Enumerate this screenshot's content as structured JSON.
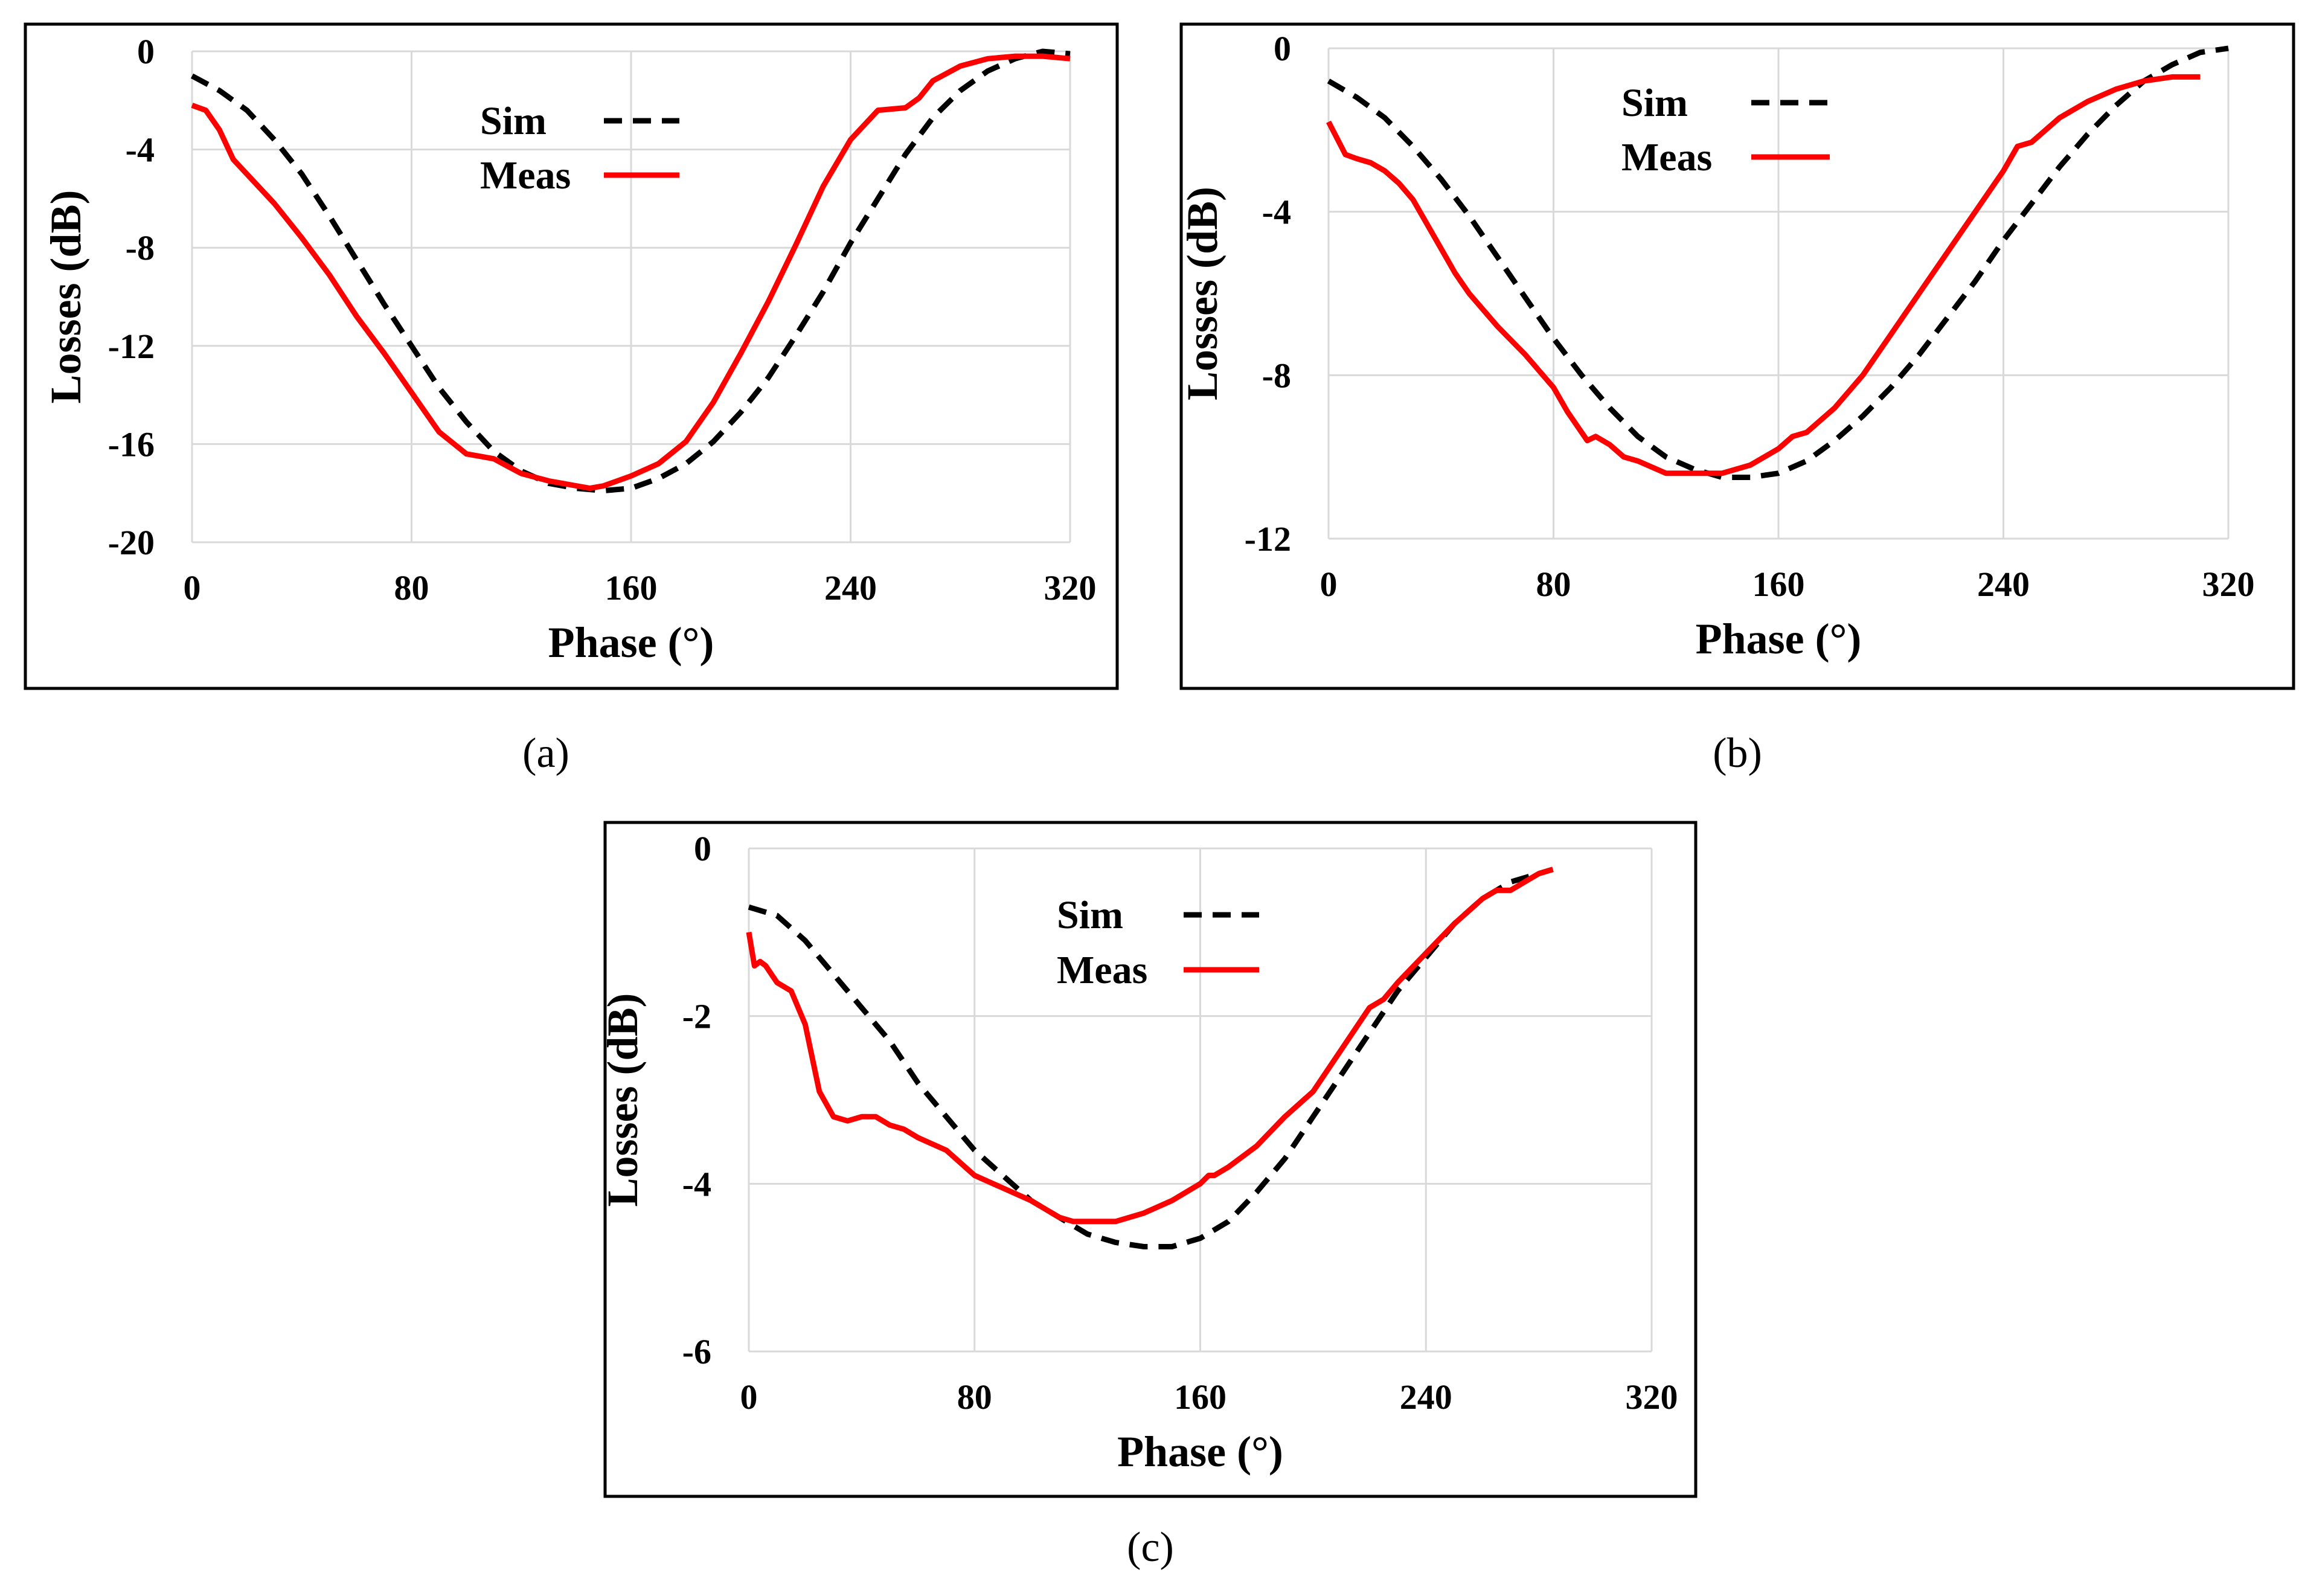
{
  "chart_data": [
    {
      "type": "line",
      "panel": "a",
      "caption": "(a)",
      "xlabel": "Phase (°)",
      "ylabel": "Losses  (dB)",
      "xlim": [
        0,
        320
      ],
      "ylim": [
        -20,
        0
      ],
      "xticks": [
        0,
        80,
        160,
        240,
        320
      ],
      "yticks": [
        0,
        -4,
        -8,
        -12,
        -16,
        -20
      ],
      "grid": true,
      "legend": "top-center",
      "series": [
        {
          "name": "Sim",
          "style": "dashed",
          "color": "#000000",
          "x": [
            0,
            10,
            20,
            30,
            40,
            50,
            60,
            70,
            80,
            90,
            100,
            110,
            120,
            130,
            140,
            150,
            160,
            170,
            180,
            190,
            200,
            210,
            220,
            230,
            240,
            250,
            260,
            270,
            280,
            290,
            300,
            310,
            320
          ],
          "y": [
            -1,
            -1.6,
            -2.4,
            -3.6,
            -5,
            -6.7,
            -8.5,
            -10.3,
            -12,
            -13.7,
            -15.1,
            -16.3,
            -17.1,
            -17.6,
            -17.8,
            -17.9,
            -17.8,
            -17.4,
            -16.8,
            -15.9,
            -14.7,
            -13.3,
            -11.6,
            -9.8,
            -7.8,
            -6,
            -4.2,
            -2.7,
            -1.6,
            -0.8,
            -0.3,
            0,
            -0.1
          ]
        },
        {
          "name": "Meas",
          "style": "solid",
          "color": "#ff0000",
          "x": [
            0,
            5,
            10,
            15,
            20,
            30,
            40,
            50,
            60,
            70,
            80,
            90,
            100,
            105,
            110,
            115,
            120,
            130,
            140,
            145,
            150,
            160,
            170,
            180,
            190,
            200,
            210,
            220,
            230,
            240,
            250,
            260,
            265,
            270,
            280,
            290,
            300,
            310,
            320
          ],
          "y": [
            -2.2,
            -2.4,
            -3.2,
            -4.4,
            -5,
            -6.2,
            -7.6,
            -9.1,
            -10.8,
            -12.3,
            -13.9,
            -15.5,
            -16.4,
            -16.5,
            -16.6,
            -16.9,
            -17.2,
            -17.5,
            -17.7,
            -17.8,
            -17.7,
            -17.3,
            -16.8,
            -15.9,
            -14.3,
            -12.3,
            -10.2,
            -7.9,
            -5.5,
            -3.6,
            -2.4,
            -2.3,
            -1.9,
            -1.2,
            -0.6,
            -0.3,
            -0.2,
            -0.2,
            -0.3
          ]
        }
      ]
    },
    {
      "type": "line",
      "panel": "b",
      "caption": "(b)",
      "xlabel": "Phase (°)",
      "ylabel": "Losses  (dB)",
      "xlim": [
        0,
        320
      ],
      "ylim": [
        -12,
        0
      ],
      "xticks": [
        0,
        80,
        160,
        240,
        320
      ],
      "yticks": [
        0,
        -4,
        -8,
        -12
      ],
      "grid": true,
      "legend": "top-center",
      "series": [
        {
          "name": "Sim",
          "style": "dashed",
          "color": "#000000",
          "x": [
            0,
            10,
            20,
            30,
            40,
            50,
            60,
            70,
            80,
            90,
            100,
            110,
            120,
            130,
            140,
            150,
            160,
            170,
            180,
            190,
            200,
            210,
            220,
            230,
            240,
            250,
            260,
            270,
            280,
            290,
            300,
            310,
            320
          ],
          "y": [
            -0.8,
            -1.2,
            -1.7,
            -2.4,
            -3.2,
            -4.1,
            -5.1,
            -6.1,
            -7.1,
            -8,
            -8.8,
            -9.5,
            -10,
            -10.3,
            -10.5,
            -10.5,
            -10.4,
            -10.1,
            -9.6,
            -9,
            -8.3,
            -7.5,
            -6.6,
            -5.7,
            -4.7,
            -3.8,
            -2.9,
            -2.1,
            -1.4,
            -0.8,
            -0.4,
            -0.1,
            0
          ]
        },
        {
          "name": "Meas",
          "style": "solid",
          "color": "#ff0000",
          "x": [
            0,
            3,
            6,
            10,
            15,
            20,
            25,
            30,
            35,
            40,
            45,
            50,
            60,
            70,
            80,
            85,
            90,
            92,
            95,
            100,
            105,
            110,
            120,
            130,
            140,
            150,
            155,
            160,
            165,
            170,
            180,
            190,
            200,
            210,
            220,
            230,
            240,
            245,
            250,
            260,
            270,
            280,
            290,
            300,
            310
          ],
          "y": [
            -1.8,
            -2.2,
            -2.6,
            -2.7,
            -2.8,
            -3,
            -3.3,
            -3.7,
            -4.3,
            -4.9,
            -5.5,
            -6,
            -6.8,
            -7.5,
            -8.3,
            -8.9,
            -9.4,
            -9.6,
            -9.5,
            -9.7,
            -10,
            -10.1,
            -10.4,
            -10.4,
            -10.4,
            -10.2,
            -10,
            -9.8,
            -9.5,
            -9.4,
            -8.8,
            -8,
            -7,
            -6,
            -5,
            -4,
            -3,
            -2.4,
            -2.3,
            -1.7,
            -1.3,
            -1,
            -0.8,
            -0.7,
            -0.7
          ]
        }
      ]
    },
    {
      "type": "line",
      "panel": "c",
      "caption": "(c)",
      "xlabel": "Phase (°)",
      "ylabel": "Losses  (dB)",
      "xlim": [
        0,
        320
      ],
      "ylim": [
        -6,
        0
      ],
      "xticks": [
        0,
        80,
        160,
        240,
        320
      ],
      "yticks": [
        0,
        -2,
        -4,
        -6
      ],
      "grid": true,
      "legend": "top-center",
      "series": [
        {
          "name": "Sim",
          "style": "dashed",
          "color": "#000000",
          "x": [
            0,
            10,
            20,
            30,
            40,
            50,
            60,
            70,
            80,
            90,
            100,
            110,
            120,
            130,
            140,
            150,
            160,
            170,
            180,
            190,
            200,
            210,
            220,
            230,
            240,
            250,
            260,
            270,
            280,
            285
          ],
          "y": [
            -0.7,
            -0.8,
            -1.1,
            -1.5,
            -1.9,
            -2.3,
            -2.8,
            -3.2,
            -3.6,
            -3.9,
            -4.2,
            -4.4,
            -4.6,
            -4.7,
            -4.75,
            -4.75,
            -4.65,
            -4.45,
            -4.1,
            -3.7,
            -3.2,
            -2.7,
            -2.2,
            -1.7,
            -1.3,
            -0.9,
            -0.6,
            -0.4,
            -0.3,
            -0.25
          ]
        },
        {
          "name": "Meas",
          "style": "solid",
          "color": "#ff0000",
          "x": [
            0,
            2,
            4,
            6,
            8,
            10,
            15,
            20,
            25,
            30,
            35,
            40,
            45,
            50,
            55,
            60,
            70,
            80,
            90,
            100,
            110,
            115,
            120,
            130,
            140,
            150,
            155,
            160,
            163,
            165,
            170,
            180,
            190,
            200,
            210,
            220,
            225,
            230,
            240,
            250,
            260,
            265,
            270,
            280,
            285
          ],
          "y": [
            -1,
            -1.4,
            -1.35,
            -1.4,
            -1.5,
            -1.6,
            -1.7,
            -2.1,
            -2.9,
            -3.2,
            -3.25,
            -3.2,
            -3.2,
            -3.3,
            -3.35,
            -3.45,
            -3.6,
            -3.9,
            -4.05,
            -4.2,
            -4.4,
            -4.45,
            -4.45,
            -4.45,
            -4.35,
            -4.2,
            -4.1,
            -4,
            -3.9,
            -3.9,
            -3.8,
            -3.55,
            -3.2,
            -2.9,
            -2.4,
            -1.9,
            -1.8,
            -1.6,
            -1.25,
            -0.9,
            -0.6,
            -0.5,
            -0.5,
            -0.3,
            -0.25
          ]
        }
      ]
    }
  ]
}
